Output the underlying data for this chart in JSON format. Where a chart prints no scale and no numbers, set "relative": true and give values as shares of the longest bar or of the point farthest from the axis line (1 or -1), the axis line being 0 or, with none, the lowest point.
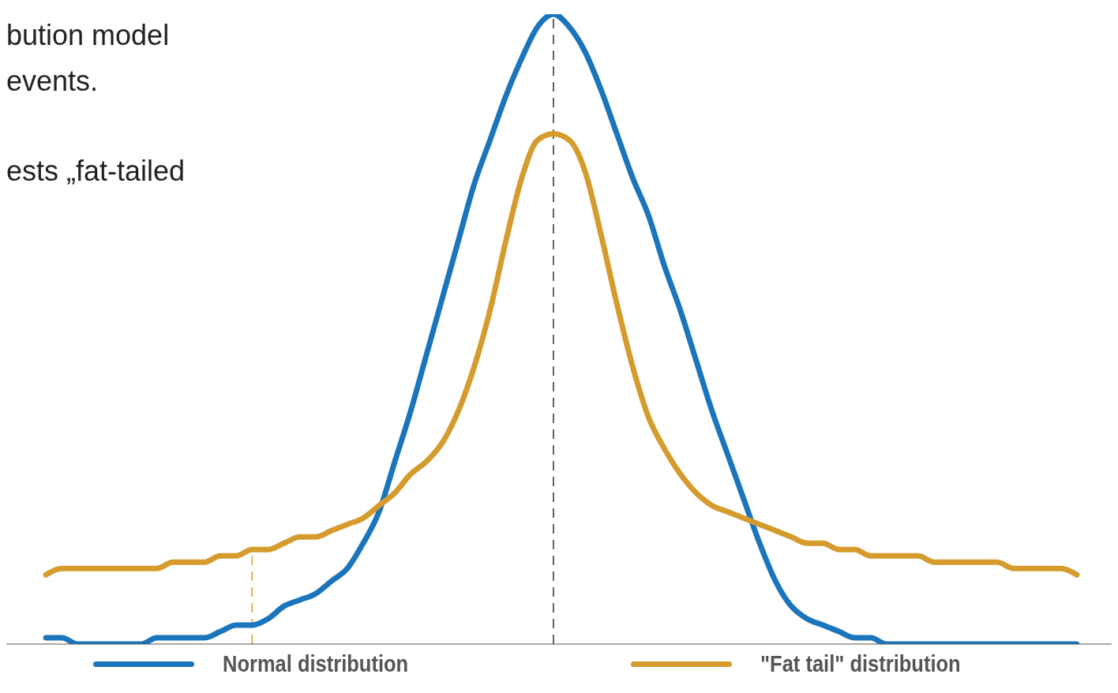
{
  "chart_data": {
    "type": "line",
    "relative": true,
    "annotations": [
      "bution model",
      "events.",
      "ests „fat-tailed"
    ],
    "categories": [
      null,
      null,
      null,
      null,
      null,
      null,
      null,
      null,
      null,
      null,
      null,
      null,
      null,
      null,
      null,
      null,
      null,
      null,
      null,
      null,
      null,
      null,
      null,
      null,
      null,
      null,
      null,
      null,
      null,
      null,
      null,
      null,
      null,
      null,
      null,
      null,
      null,
      null,
      null,
      null,
      null,
      null,
      null,
      null,
      null,
      null,
      null,
      null,
      null,
      null,
      null,
      null,
      null,
      null,
      null,
      null,
      null,
      null,
      null,
      null,
      null,
      null,
      null,
      null,
      null,
      null
    ],
    "series": [
      {
        "name": "Normal distribution",
        "color": "#1a75bc",
        "values": [
          0.01,
          0.01,
          0.0,
          0.0,
          0.0,
          0.0,
          0.0,
          0.01,
          0.01,
          0.01,
          0.01,
          0.02,
          0.03,
          0.03,
          0.04,
          0.06,
          0.07,
          0.08,
          0.1,
          0.12,
          0.16,
          0.21,
          0.29,
          0.37,
          0.46,
          0.55,
          0.64,
          0.73,
          0.8,
          0.87,
          0.93,
          0.98,
          1,
          0.98,
          0.94,
          0.88,
          0.81,
          0.74,
          0.68,
          0.6,
          0.53,
          0.45,
          0.37,
          0.3,
          0.23,
          0.16,
          0.1,
          0.06,
          0.04,
          0.03,
          0.02,
          0.01,
          0.01,
          0.0,
          0.0,
          0.0,
          0.0,
          0.0,
          0.0,
          0.0,
          0.0,
          0.0,
          0.0,
          0.0,
          0.0,
          0.0
        ]
      },
      {
        "name": "\"Fat tail\" distribution",
        "color": "#d59b2d",
        "values": [
          0.11,
          0.12,
          0.12,
          0.12,
          0.12,
          0.12,
          0.12,
          0.12,
          0.13,
          0.13,
          0.13,
          0.14,
          0.14,
          0.15,
          0.15,
          0.16,
          0.17,
          0.17,
          0.18,
          0.19,
          0.2,
          0.22,
          0.24,
          0.27,
          0.29,
          0.32,
          0.37,
          0.44,
          0.53,
          0.64,
          0.74,
          0.8,
          0.81,
          0.8,
          0.75,
          0.65,
          0.54,
          0.44,
          0.36,
          0.31,
          0.27,
          0.24,
          0.22,
          0.21,
          0.2,
          0.19,
          0.18,
          0.17,
          0.16,
          0.16,
          0.15,
          0.15,
          0.14,
          0.14,
          0.14,
          0.14,
          0.13,
          0.13,
          0.13,
          0.13,
          0.13,
          0.12,
          0.12,
          0.12,
          0.12,
          0.11
        ]
      }
    ],
    "legend": "bottom",
    "grid": false,
    "marker": "none",
    "line_style": "solid"
  }
}
